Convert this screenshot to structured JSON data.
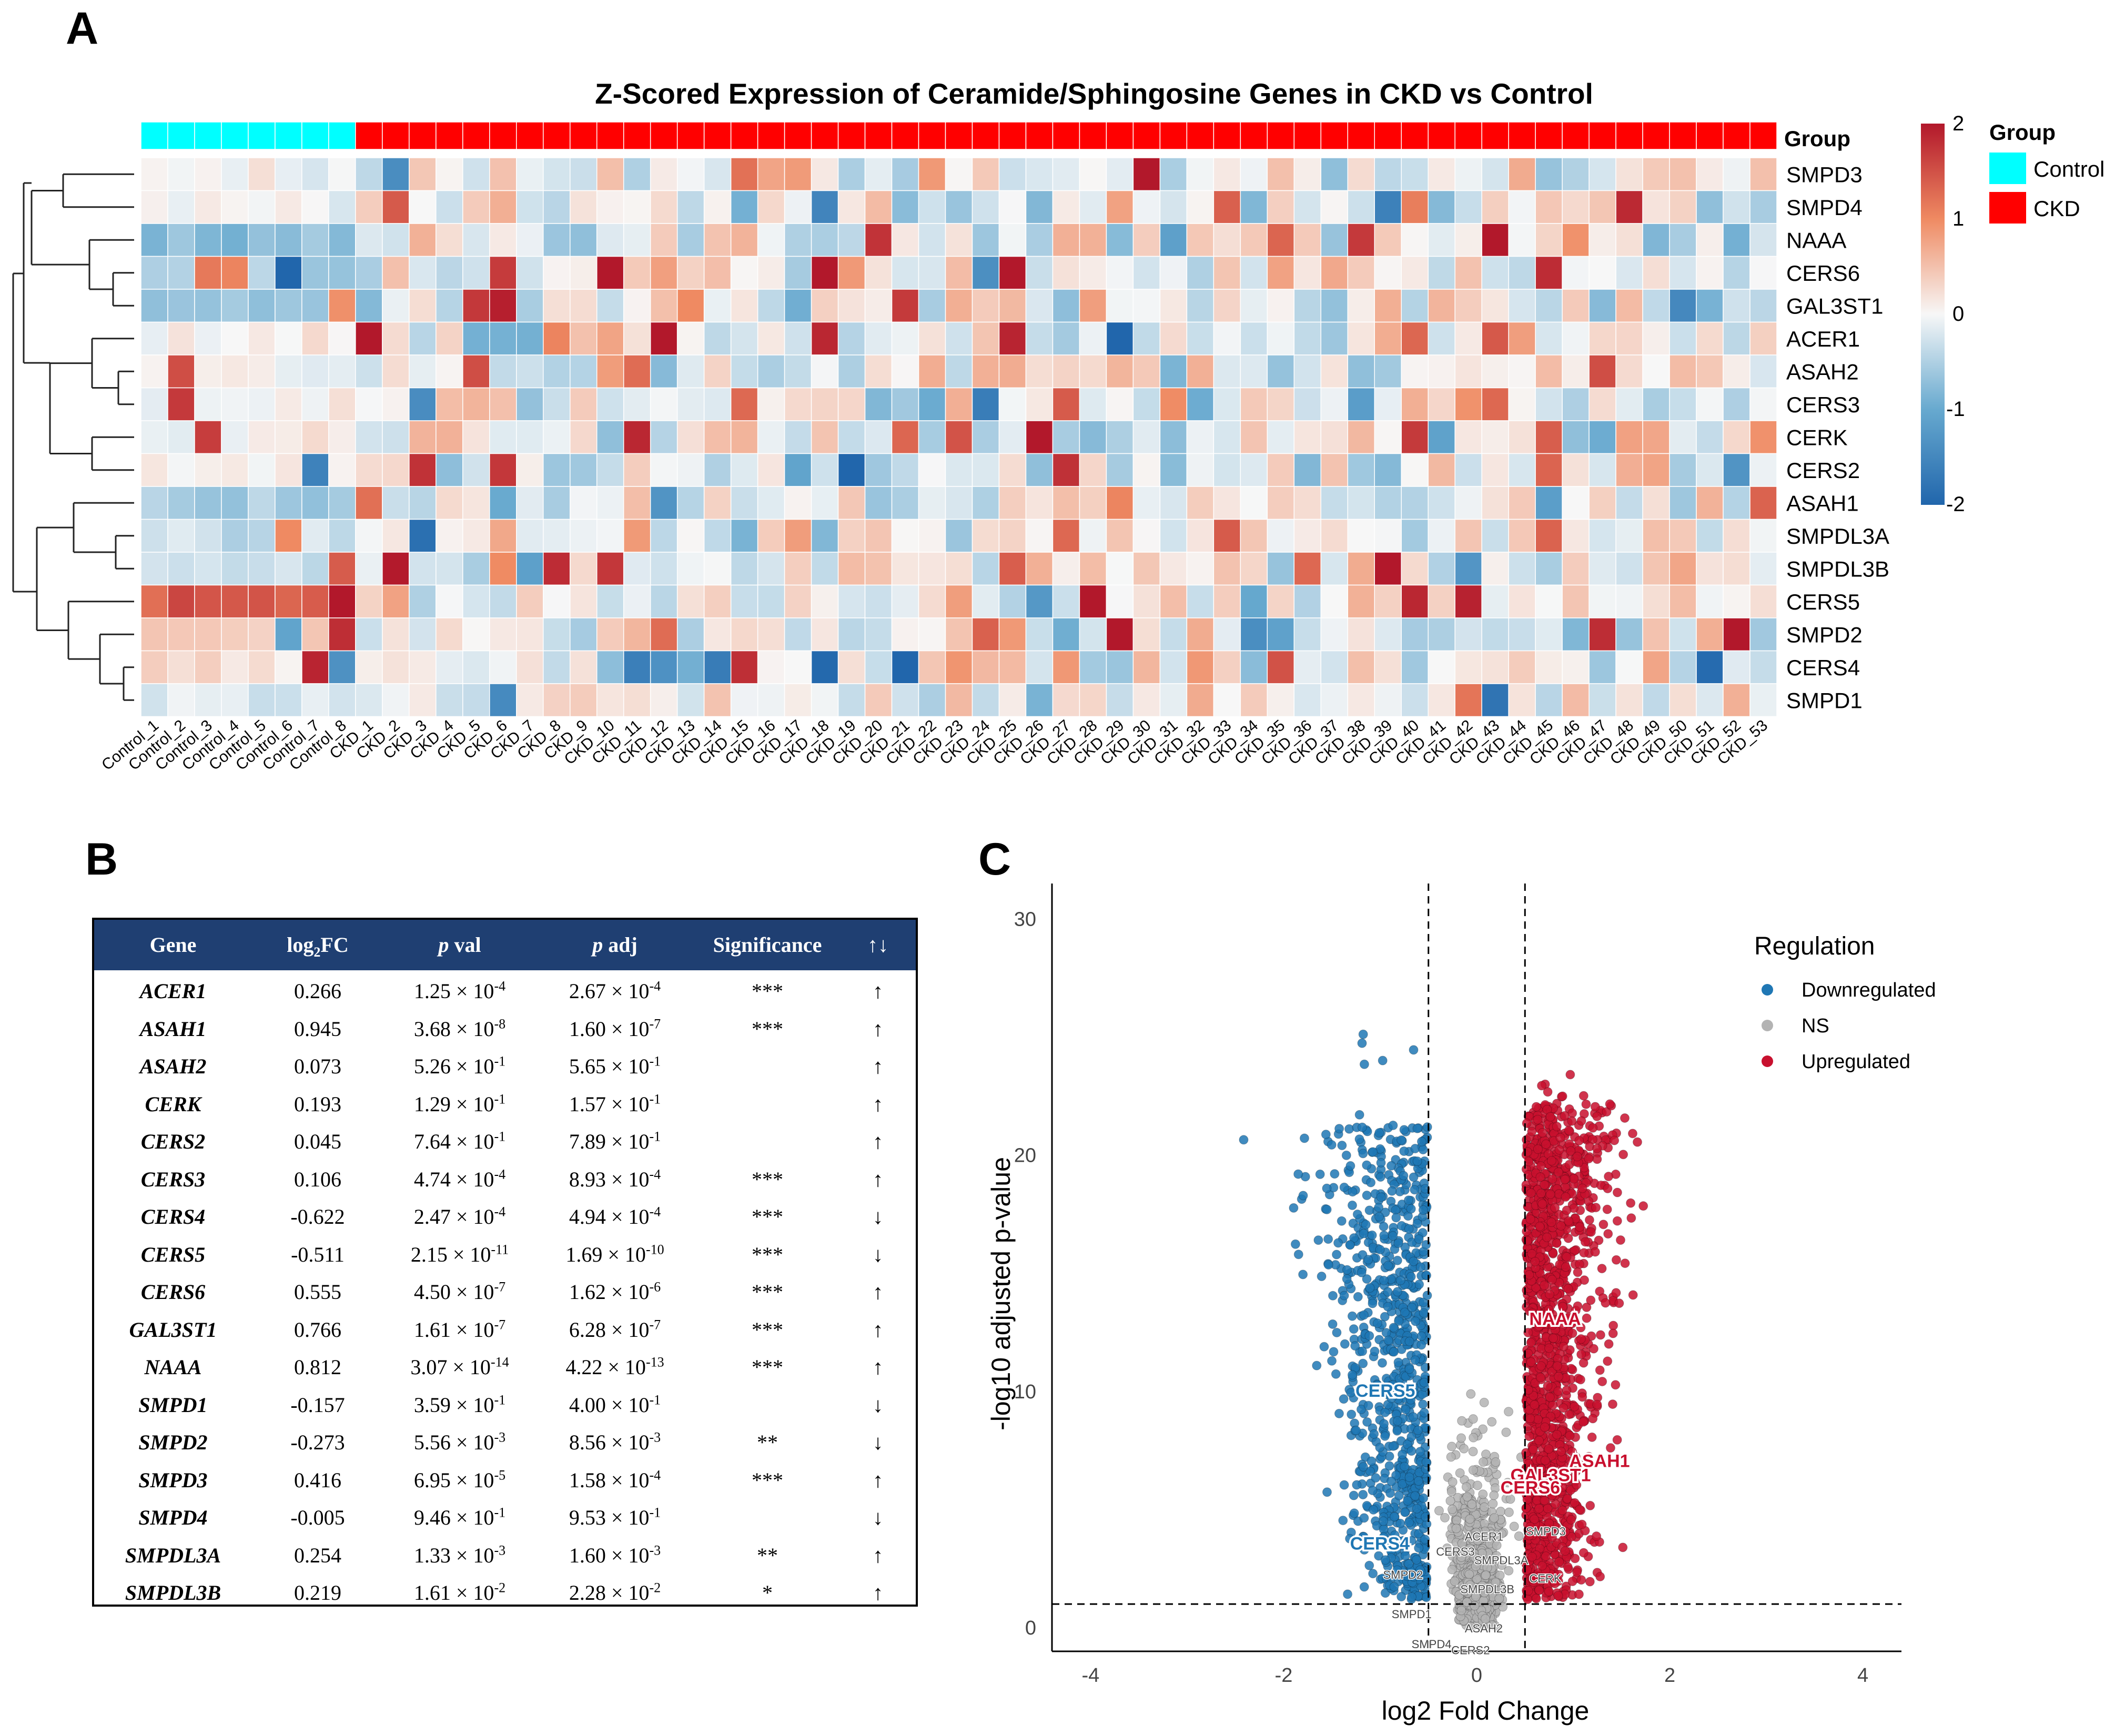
{
  "panels": {
    "a": "A",
    "b": "B",
    "c": "C"
  },
  "heatmap": {
    "title": "Z-Scored Expression of Ceramide/Sphingosine Genes in CKD vs Control",
    "group_row_label": "Group",
    "genes": [
      "SMPD3",
      "SMPD4",
      "NAAA",
      "CERS6",
      "GAL3ST1",
      "ACER1",
      "ASAH2",
      "CERS3",
      "CERK",
      "CERS2",
      "ASAH1",
      "SMPDL3A",
      "SMPDL3B",
      "CERS5",
      "SMPD2",
      "CERS4",
      "SMPD1"
    ],
    "samples": [
      "Control_1",
      "Control_2",
      "Control_3",
      "Control_4",
      "Control_5",
      "Control_6",
      "Control_7",
      "Control_8",
      "CKD_1",
      "CKD_2",
      "CKD_3",
      "CKD_4",
      "CKD_5",
      "CKD_6",
      "CKD_7",
      "CKD_8",
      "CKD_9",
      "CKD_10",
      "CKD_11",
      "CKD_12",
      "CKD_13",
      "CKD_14",
      "CKD_15",
      "CKD_16",
      "CKD_17",
      "CKD_18",
      "CKD_19",
      "CKD_20",
      "CKD_21",
      "CKD_22",
      "CKD_23",
      "CKD_24",
      "CKD_25",
      "CKD_26",
      "CKD_27",
      "CKD_28",
      "CKD_29",
      "CKD_30",
      "CKD_31",
      "CKD_32",
      "CKD_33",
      "CKD_34",
      "CKD_35",
      "CKD_36",
      "CKD_37",
      "CKD_38",
      "CKD_39",
      "CKD_40",
      "CKD_41",
      "CKD_42",
      "CKD_43",
      "CKD_44",
      "CKD_45",
      "CKD_46",
      "CKD_47",
      "CKD_48",
      "CKD_49",
      "CKD_50",
      "CKD_51",
      "CKD_52",
      "CKD_53"
    ],
    "colorbar": {
      "ticks": [
        "2",
        "1",
        "0",
        "-1",
        "-2"
      ],
      "high": "#b2182b",
      "mid": "#f7f7f7",
      "low": "#2166ac"
    },
    "legend": {
      "title": "Group",
      "items": [
        {
          "label": "Control",
          "color": "#00ffff"
        },
        {
          "label": "CKD",
          "color": "#ff0000"
        }
      ]
    }
  },
  "table": {
    "headers": {
      "gene": "Gene",
      "log2fc_pre": "log",
      "log2fc_sub": "2",
      "log2fc_post": "FC",
      "pval_p": "p",
      "pval_rest": " val",
      "padj_p": "p",
      "padj_rest": " adj",
      "sig": "Significance",
      "dir": "↑↓"
    },
    "times": " × 10",
    "rows": [
      {
        "gene": "ACER1",
        "fc": "0.266",
        "pm": "1.25",
        "pe": "-4",
        "am": "2.67",
        "ae": "-4",
        "sig": "***",
        "dir": "↑"
      },
      {
        "gene": "ASAH1",
        "fc": "0.945",
        "pm": "3.68",
        "pe": "-8",
        "am": "1.60",
        "ae": "-7",
        "sig": "***",
        "dir": "↑"
      },
      {
        "gene": "ASAH2",
        "fc": "0.073",
        "pm": "5.26",
        "pe": "-1",
        "am": "5.65",
        "ae": "-1",
        "sig": "",
        "dir": "↑"
      },
      {
        "gene": "CERK",
        "fc": "0.193",
        "pm": "1.29",
        "pe": "-1",
        "am": "1.57",
        "ae": "-1",
        "sig": "",
        "dir": "↑"
      },
      {
        "gene": "CERS2",
        "fc": "0.045",
        "pm": "7.64",
        "pe": "-1",
        "am": "7.89",
        "ae": "-1",
        "sig": "",
        "dir": "↑"
      },
      {
        "gene": "CERS3",
        "fc": "0.106",
        "pm": "4.74",
        "pe": "-4",
        "am": "8.93",
        "ae": "-4",
        "sig": "***",
        "dir": "↑"
      },
      {
        "gene": "CERS4",
        "fc": "-0.622",
        "pm": "2.47",
        "pe": "-4",
        "am": "4.94",
        "ae": "-4",
        "sig": "***",
        "dir": "↓"
      },
      {
        "gene": "CERS5",
        "fc": "-0.511",
        "pm": "2.15",
        "pe": "-11",
        "am": "1.69",
        "ae": "-10",
        "sig": "***",
        "dir": "↓"
      },
      {
        "gene": "CERS6",
        "fc": "0.555",
        "pm": "4.50",
        "pe": "-7",
        "am": "1.62",
        "ae": "-6",
        "sig": "***",
        "dir": "↑"
      },
      {
        "gene": "GAL3ST1",
        "fc": "0.766",
        "pm": "1.61",
        "pe": "-7",
        "am": "6.28",
        "ae": "-7",
        "sig": "***",
        "dir": "↑"
      },
      {
        "gene": "NAAA",
        "fc": "0.812",
        "pm": "3.07",
        "pe": "-14",
        "am": "4.22",
        "ae": "-13",
        "sig": "***",
        "dir": "↑"
      },
      {
        "gene": "SMPD1",
        "fc": "-0.157",
        "pm": "3.59",
        "pe": "-1",
        "am": "4.00",
        "ae": "-1",
        "sig": "",
        "dir": "↓"
      },
      {
        "gene": "SMPD2",
        "fc": "-0.273",
        "pm": "5.56",
        "pe": "-3",
        "am": "8.56",
        "ae": "-3",
        "sig": "**",
        "dir": "↓"
      },
      {
        "gene": "SMPD3",
        "fc": "0.416",
        "pm": "6.95",
        "pe": "-5",
        "am": "1.58",
        "ae": "-4",
        "sig": "***",
        "dir": "↑"
      },
      {
        "gene": "SMPD4",
        "fc": "-0.005",
        "pm": "9.46",
        "pe": "-1",
        "am": "9.53",
        "ae": "-1",
        "sig": "",
        "dir": "↓"
      },
      {
        "gene": "SMPDL3A",
        "fc": "0.254",
        "pm": "1.33",
        "pe": "-3",
        "am": "1.60",
        "ae": "-3",
        "sig": "**",
        "dir": "↑"
      },
      {
        "gene": "SMPDL3B",
        "fc": "0.219",
        "pm": "1.61",
        "pe": "-2",
        "am": "2.28",
        "ae": "-2",
        "sig": "*",
        "dir": "↑"
      }
    ]
  },
  "chart_data": {
    "type": "scatter",
    "title": "",
    "xlabel": "log2 Fold Change",
    "ylabel": "-log10 adjusted p-value",
    "xlim": [
      -4.4,
      4.4
    ],
    "ylim": [
      -1,
      31.5
    ],
    "x_ticks": [
      "-4",
      "-2",
      "0",
      "2",
      "4"
    ],
    "y_ticks": [
      "0",
      "10",
      "20",
      "30"
    ],
    "thresholds": {
      "log2fc": [
        -0.5,
        0.5
      ],
      "neg_log10_padj": 1.0
    },
    "legend": {
      "title": "Regulation",
      "items": [
        {
          "label": "Downregulated",
          "color": "#1f77b4"
        },
        {
          "label": "NS",
          "color": "#b3b3b3"
        },
        {
          "label": "Upregulated",
          "color": "#c8102e"
        }
      ]
    },
    "highlighted_genes": [
      {
        "name": "NAAA",
        "x": 0.812,
        "y": 12.37,
        "class": "up"
      },
      {
        "name": "ASAH1",
        "x": 0.945,
        "y": 6.8,
        "class": "up"
      },
      {
        "name": "GAL3ST1",
        "x": 0.766,
        "y": 6.2,
        "class": "up"
      },
      {
        "name": "CERS6",
        "x": 0.555,
        "y": 5.79,
        "class": "up"
      },
      {
        "name": "CERS5",
        "x": -0.511,
        "y": 9.77,
        "class": "down"
      },
      {
        "name": "CERS4",
        "x": -0.622,
        "y": 3.31,
        "class": "down"
      },
      {
        "name": "CERS3",
        "x": 0.106,
        "y": 3.05,
        "class": "ns"
      },
      {
        "name": "ACER1",
        "x": 0.266,
        "y": 3.57,
        "class": "ns"
      },
      {
        "name": "SMPD3",
        "x": 0.416,
        "y": 3.8,
        "class": "ns"
      },
      {
        "name": "SMPDL3B",
        "x": 0.219,
        "y": 1.64,
        "class": "ns"
      },
      {
        "name": "SMPDL3A",
        "x": 0.254,
        "y": 2.8,
        "class": "ns"
      },
      {
        "name": "SMPD2",
        "x": -0.273,
        "y": 2.07,
        "class": "ns"
      },
      {
        "name": "SMPD1",
        "x": -0.157,
        "y": 0.4,
        "class": "ns"
      },
      {
        "name": "ASAH2",
        "x": 0.073,
        "y": 0.25,
        "class": "ns"
      },
      {
        "name": "SMPD4",
        "x": -0.005,
        "y": 0.02,
        "class": "ns"
      },
      {
        "name": "CERS2",
        "x": 0.045,
        "y": 0.1,
        "class": "ns"
      },
      {
        "name": "CERK",
        "x": 0.193,
        "y": 0.8,
        "class": "ns"
      }
    ]
  }
}
